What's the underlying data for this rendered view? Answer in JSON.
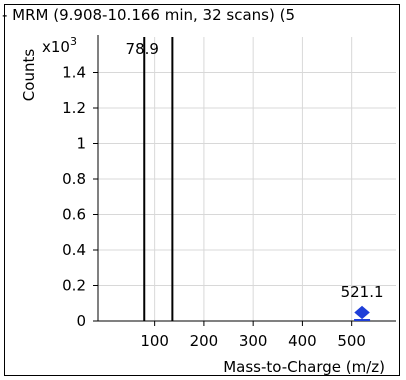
{
  "chart_data": {
    "type": "bar",
    "title": "- MRM (9.908-10.166 min, 32 scans) (5",
    "xlabel": "Mass-to-Charge (m/z)",
    "ylabel": "Counts",
    "y_multiplier": "x10",
    "y_multiplier_exp": "3",
    "xlim": [
      -15,
      590
    ],
    "ylim": [
      0,
      1.6
    ],
    "x_ticks": [
      100,
      200,
      300,
      400,
      500
    ],
    "y_ticks": [
      0,
      0.2,
      0.4,
      0.6,
      0.8,
      1,
      1.2,
      1.4
    ],
    "x_tick_labels": [
      "100",
      "200",
      "300",
      "400",
      "500"
    ],
    "y_tick_labels": [
      "0",
      "0.2",
      "0.4",
      "0.6",
      "0.8",
      "1",
      "1.2",
      "1.4"
    ],
    "grid": true,
    "peaks": [
      {
        "x": 78.9,
        "y": 1.6,
        "label": "78.9"
      },
      {
        "x": 136,
        "y": 1.6,
        "label": ""
      }
    ],
    "marker": {
      "x": 521.1,
      "y": 0.02,
      "label": "521.1",
      "color": "#1f3fd8"
    }
  }
}
